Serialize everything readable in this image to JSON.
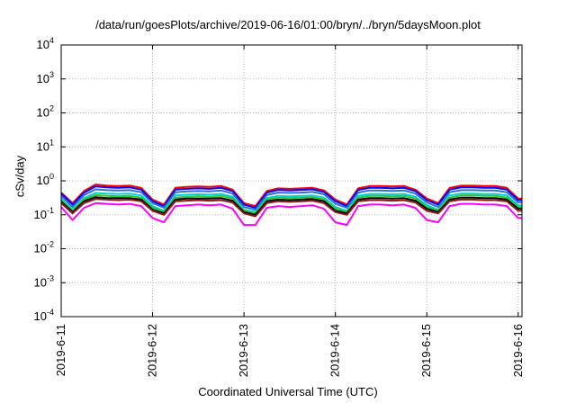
{
  "chart_data": {
    "type": "line",
    "title": "/data/run/goesPlots/archive/2019-06-16/01:00/bryn/../bryn/5daysMoon.plot",
    "xlabel": "Coordinated Universal Time (UTC)",
    "ylabel": "cSv/day",
    "yscale": "log",
    "ylim": [
      0.0001,
      10000
    ],
    "xlim": [
      "2019-06-11 00:00",
      "2019-06-16 01:00"
    ],
    "grid": true,
    "legend": "none",
    "x_ticks": [
      "2019-6-11",
      "2019-6-12",
      "2019-6-13",
      "2019-6-14",
      "2019-6-15",
      "2019-6-16"
    ],
    "y_ticks": [
      {
        "value": 0.0001,
        "base": "10",
        "exp": "-4"
      },
      {
        "value": 0.001,
        "base": "10",
        "exp": "-3"
      },
      {
        "value": 0.01,
        "base": "10",
        "exp": "-2"
      },
      {
        "value": 0.1,
        "base": "10",
        "exp": "-1"
      },
      {
        "value": 1,
        "base": "10",
        "exp": "0"
      },
      {
        "value": 10,
        "base": "10",
        "exp": "1"
      },
      {
        "value": 100,
        "base": "10",
        "exp": "2"
      },
      {
        "value": 1000,
        "base": "10",
        "exp": "3"
      },
      {
        "value": 10000,
        "base": "10",
        "exp": "4"
      }
    ],
    "x": [
      "2019-06-11 00:00",
      "2019-06-11 03:00",
      "2019-06-11 06:00",
      "2019-06-11 09:00",
      "2019-06-11 12:00",
      "2019-06-11 15:00",
      "2019-06-11 18:00",
      "2019-06-11 21:00",
      "2019-06-12 00:00",
      "2019-06-12 03:00",
      "2019-06-12 06:00",
      "2019-06-12 09:00",
      "2019-06-12 12:00",
      "2019-06-12 15:00",
      "2019-06-12 18:00",
      "2019-06-12 21:00",
      "2019-06-13 00:00",
      "2019-06-13 03:00",
      "2019-06-13 06:00",
      "2019-06-13 09:00",
      "2019-06-13 12:00",
      "2019-06-13 15:00",
      "2019-06-13 18:00",
      "2019-06-13 21:00",
      "2019-06-14 00:00",
      "2019-06-14 03:00",
      "2019-06-14 06:00",
      "2019-06-14 09:00",
      "2019-06-14 12:00",
      "2019-06-14 15:00",
      "2019-06-14 18:00",
      "2019-06-14 21:00",
      "2019-06-15 00:00",
      "2019-06-15 03:00",
      "2019-06-15 06:00",
      "2019-06-15 09:00",
      "2019-06-15 12:00",
      "2019-06-15 15:00",
      "2019-06-15 18:00",
      "2019-06-15 21:00",
      "2019-06-16 00:00",
      "2019-06-16 01:00"
    ],
    "series": [
      {
        "color": "#ff0000",
        "values": [
          0.45,
          0.22,
          0.5,
          0.78,
          0.72,
          0.7,
          0.72,
          0.62,
          0.28,
          0.2,
          0.62,
          0.66,
          0.68,
          0.66,
          0.7,
          0.55,
          0.22,
          0.18,
          0.5,
          0.6,
          0.58,
          0.6,
          0.62,
          0.52,
          0.28,
          0.2,
          0.6,
          0.7,
          0.7,
          0.68,
          0.7,
          0.55,
          0.3,
          0.22,
          0.62,
          0.72,
          0.72,
          0.7,
          0.7,
          0.62,
          0.3,
          0.3
        ]
      },
      {
        "color": "#0000ff",
        "values": [
          0.42,
          0.2,
          0.45,
          0.68,
          0.64,
          0.62,
          0.64,
          0.55,
          0.25,
          0.18,
          0.55,
          0.58,
          0.6,
          0.58,
          0.62,
          0.5,
          0.2,
          0.16,
          0.45,
          0.54,
          0.52,
          0.54,
          0.56,
          0.47,
          0.25,
          0.18,
          0.54,
          0.62,
          0.62,
          0.6,
          0.62,
          0.5,
          0.27,
          0.2,
          0.55,
          0.64,
          0.64,
          0.62,
          0.62,
          0.55,
          0.27,
          0.27
        ]
      },
      {
        "color": "#2e6fd0",
        "values": [
          0.36,
          0.17,
          0.38,
          0.56,
          0.53,
          0.52,
          0.53,
          0.46,
          0.22,
          0.16,
          0.46,
          0.49,
          0.5,
          0.49,
          0.52,
          0.42,
          0.17,
          0.14,
          0.38,
          0.45,
          0.44,
          0.45,
          0.47,
          0.4,
          0.21,
          0.16,
          0.45,
          0.52,
          0.52,
          0.5,
          0.52,
          0.42,
          0.23,
          0.17,
          0.46,
          0.53,
          0.53,
          0.52,
          0.52,
          0.46,
          0.23,
          0.23
        ]
      },
      {
        "color": "#00d0d0",
        "values": [
          0.3,
          0.14,
          0.31,
          0.44,
          0.42,
          0.41,
          0.42,
          0.37,
          0.18,
          0.13,
          0.37,
          0.39,
          0.4,
          0.39,
          0.41,
          0.34,
          0.14,
          0.12,
          0.31,
          0.36,
          0.35,
          0.36,
          0.37,
          0.32,
          0.17,
          0.13,
          0.36,
          0.41,
          0.41,
          0.4,
          0.41,
          0.34,
          0.19,
          0.14,
          0.37,
          0.42,
          0.42,
          0.41,
          0.41,
          0.37,
          0.19,
          0.19
        ]
      },
      {
        "color": "#30c030",
        "values": [
          0.27,
          0.13,
          0.28,
          0.38,
          0.36,
          0.35,
          0.36,
          0.32,
          0.16,
          0.12,
          0.32,
          0.34,
          0.35,
          0.34,
          0.36,
          0.3,
          0.13,
          0.11,
          0.28,
          0.32,
          0.31,
          0.32,
          0.33,
          0.28,
          0.15,
          0.12,
          0.32,
          0.36,
          0.36,
          0.35,
          0.36,
          0.3,
          0.17,
          0.13,
          0.32,
          0.37,
          0.37,
          0.36,
          0.36,
          0.32,
          0.17,
          0.17
        ]
      },
      {
        "color": "#000000",
        "values": [
          0.24,
          0.12,
          0.25,
          0.33,
          0.31,
          0.31,
          0.31,
          0.28,
          0.14,
          0.11,
          0.28,
          0.3,
          0.3,
          0.3,
          0.31,
          0.26,
          0.12,
          0.1,
          0.25,
          0.28,
          0.27,
          0.28,
          0.29,
          0.25,
          0.13,
          0.11,
          0.28,
          0.31,
          0.31,
          0.3,
          0.31,
          0.26,
          0.15,
          0.12,
          0.28,
          0.32,
          0.32,
          0.31,
          0.31,
          0.28,
          0.15,
          0.15
        ]
      },
      {
        "color": "#8b1a1a",
        "values": [
          0.22,
          0.11,
          0.22,
          0.29,
          0.28,
          0.27,
          0.28,
          0.25,
          0.13,
          0.1,
          0.25,
          0.26,
          0.27,
          0.26,
          0.27,
          0.23,
          0.11,
          0.09,
          0.22,
          0.25,
          0.24,
          0.25,
          0.26,
          0.22,
          0.12,
          0.1,
          0.25,
          0.27,
          0.27,
          0.26,
          0.27,
          0.23,
          0.13,
          0.11,
          0.25,
          0.28,
          0.28,
          0.27,
          0.27,
          0.25,
          0.13,
          0.13
        ]
      },
      {
        "color": "#ff00ff",
        "values": [
          0.17,
          0.07,
          0.16,
          0.22,
          0.21,
          0.2,
          0.21,
          0.18,
          0.08,
          0.06,
          0.18,
          0.19,
          0.2,
          0.19,
          0.2,
          0.15,
          0.05,
          0.05,
          0.16,
          0.18,
          0.17,
          0.18,
          0.19,
          0.15,
          0.06,
          0.05,
          0.18,
          0.2,
          0.2,
          0.19,
          0.2,
          0.16,
          0.07,
          0.06,
          0.18,
          0.21,
          0.21,
          0.2,
          0.2,
          0.18,
          0.08,
          0.08
        ]
      }
    ]
  },
  "colors": {
    "grid": "#b8b8b8",
    "axis": "#000000",
    "background": "#ffffff"
  }
}
